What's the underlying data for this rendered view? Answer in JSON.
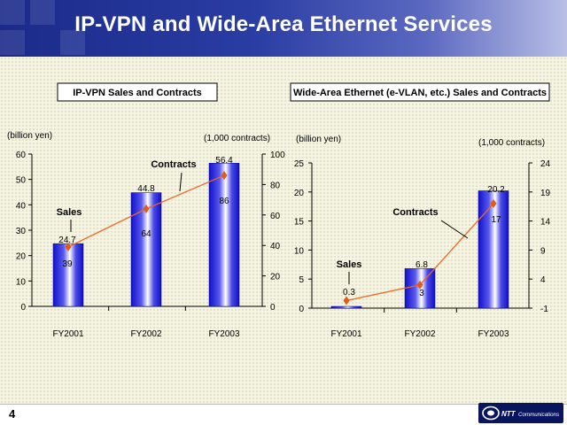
{
  "slide": {
    "title": "IP-VPN and Wide-Area Ethernet Services",
    "page_number": "4",
    "logo_text": "NTT Communications"
  },
  "colors": {
    "bar": "#2222dd",
    "line": "#ee6622",
    "marker": "#e05a18",
    "header": "#1b2a8a"
  },
  "chart_data": [
    {
      "type": "bar",
      "title": "IP-VPN Sales and Contracts",
      "categories": [
        "FY2001",
        "FY2002",
        "FY2003"
      ],
      "left_axis_unit": "(billion yen)",
      "right_axis_unit": "(1,000 contracts)",
      "ylim_left": [
        0,
        60
      ],
      "ylim_right": [
        0,
        100
      ],
      "left_ticks": [
        0,
        10,
        20,
        30,
        40,
        50,
        60
      ],
      "right_ticks": [
        0,
        20,
        40,
        60,
        80,
        100
      ],
      "series": [
        {
          "name": "Sales",
          "type": "bar",
          "axis": "left",
          "values": [
            24.7,
            44.8,
            56.4
          ],
          "labels": [
            "24.7",
            "44.8",
            "56.4"
          ]
        },
        {
          "name": "Contracts",
          "type": "line",
          "axis": "right",
          "values": [
            39,
            64,
            86
          ],
          "labels": [
            "39",
            "64",
            "86"
          ]
        }
      ]
    },
    {
      "type": "bar",
      "title": "Wide-Area Ethernet (e-VLAN, etc.) Sales and Contracts",
      "categories": [
        "FY2001",
        "FY2002",
        "FY2003"
      ],
      "left_axis_unit": "(billion yen)",
      "right_axis_unit": "(1,000 contracts)",
      "ylim_left": [
        0,
        25
      ],
      "ylim_right": [
        -1,
        24
      ],
      "left_ticks": [
        0,
        5,
        10,
        15,
        20,
        25
      ],
      "right_ticks": [
        -1,
        4,
        9,
        14,
        19,
        24
      ],
      "series": [
        {
          "name": "Sales",
          "type": "bar",
          "axis": "left",
          "values": [
            0.3,
            6.8,
            20.2
          ],
          "labels": [
            "0.3",
            "6.8",
            "20.2"
          ]
        },
        {
          "name": "Contracts",
          "type": "line",
          "axis": "right",
          "values": [
            0.3,
            3,
            17
          ],
          "labels": [
            "",
            "3",
            "17"
          ]
        }
      ]
    }
  ]
}
